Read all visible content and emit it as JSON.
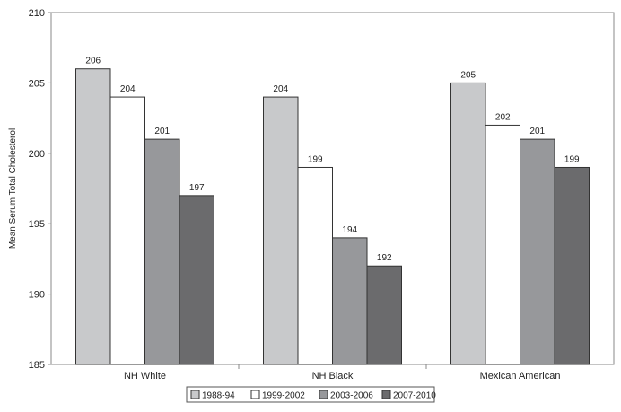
{
  "chart_data": {
    "type": "bar",
    "title": "",
    "xlabel": "",
    "ylabel": "Mean Serum Total Cholesterol",
    "ylim": [
      185,
      210
    ],
    "yticks": [
      185,
      190,
      195,
      200,
      205,
      210
    ],
    "categories": [
      "NH White",
      "NH Black",
      "Mexican American"
    ],
    "series": [
      {
        "name": "1988-94",
        "color": "#c8c9cb",
        "values": [
          206,
          204,
          205
        ]
      },
      {
        "name": "1999-2002",
        "color": "#ffffff",
        "values": [
          204,
          199,
          202
        ]
      },
      {
        "name": "2003-2006",
        "color": "#97989b",
        "values": [
          201,
          194,
          201
        ]
      },
      {
        "name": "2007-2010",
        "color": "#6b6b6d",
        "values": [
          197,
          192,
          199
        ]
      }
    ],
    "grid": false,
    "legend_position": "bottom"
  }
}
